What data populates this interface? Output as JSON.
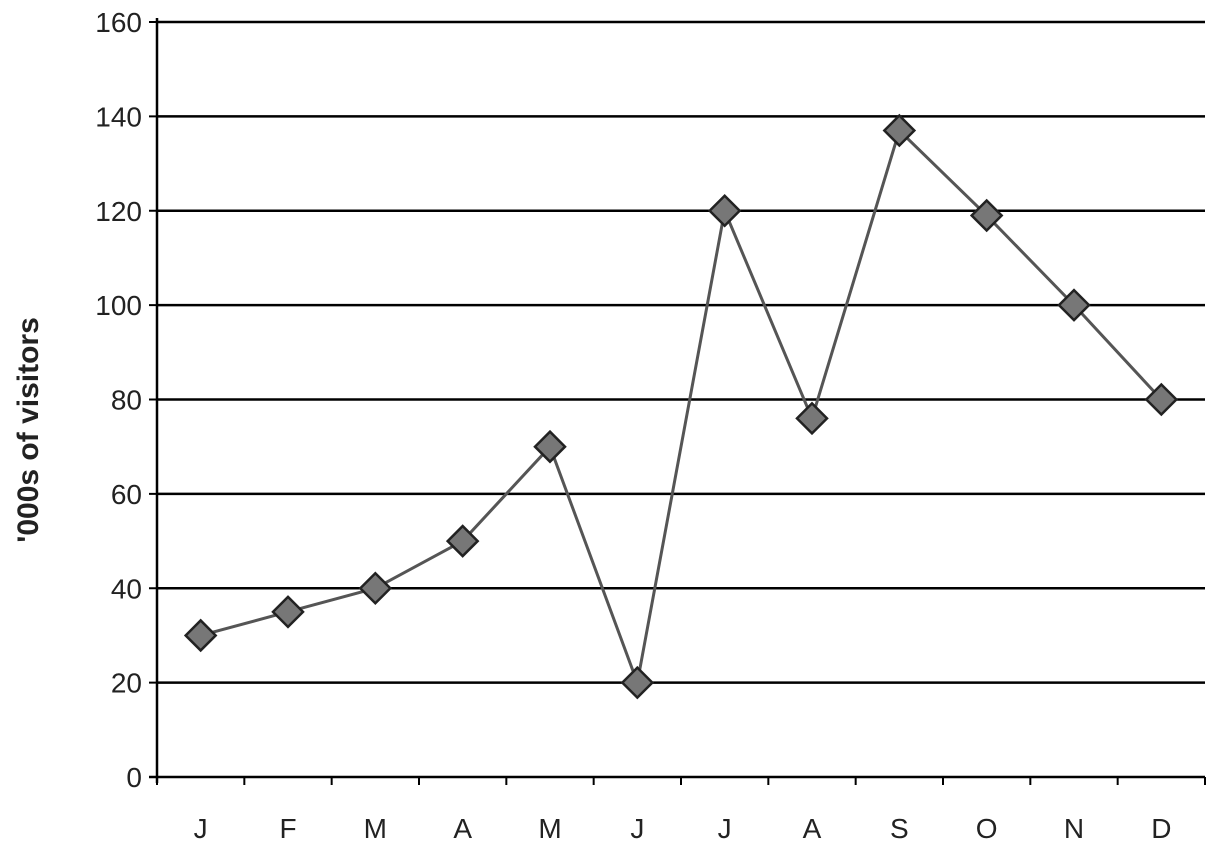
{
  "chart_data": {
    "type": "line",
    "title": "",
    "xlabel": "",
    "ylabel": "'000s of visitors",
    "categories": [
      "J",
      "F",
      "M",
      "A",
      "M",
      "J",
      "J",
      "A",
      "S",
      "O",
      "N",
      "D"
    ],
    "series": [
      {
        "values": [
          30,
          35,
          40,
          50,
          70,
          20,
          120,
          76,
          137,
          119,
          100,
          80
        ]
      }
    ],
    "ylim": [
      0,
      160
    ],
    "yticks": [
      0,
      20,
      40,
      60,
      80,
      100,
      120,
      140,
      160
    ],
    "grid": true,
    "marker": "diamond",
    "colors": {
      "line": "#555555",
      "marker_fill": "#777777",
      "marker_edge": "#222222",
      "grid": "#000000",
      "axis": "#000000"
    }
  }
}
